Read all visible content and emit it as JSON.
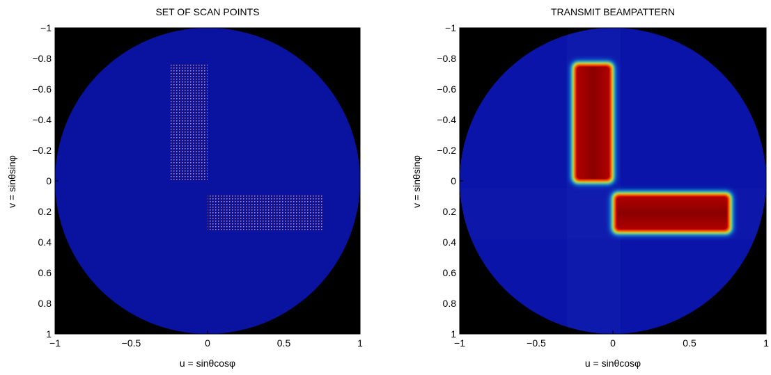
{
  "figure": {
    "left_title": "SET OF SCAN POINTS",
    "right_title": "TRANSMIT BEAMPATTERN"
  },
  "chart_data": [
    {
      "type": "heatmap",
      "title": "SET OF SCAN POINTS",
      "xlabel": "u = sinθcosφ",
      "ylabel": "v = sinθsinφ",
      "xlim": [
        -1,
        1
      ],
      "ylim": [
        -1,
        1
      ],
      "y_axis_reversed": true,
      "x_ticks": [
        "−1",
        "−0.5",
        "0",
        "0.5",
        "1"
      ],
      "x_tick_values": [
        -1,
        -0.5,
        0,
        0.5,
        1
      ],
      "y_ticks": [
        "−1",
        "−0.8",
        "−0.6",
        "−0.4",
        "−0.2",
        "0",
        "0.2",
        "0.4",
        "0.6",
        "0.8",
        "1"
      ],
      "y_tick_values": [
        -1,
        -0.8,
        -0.6,
        -0.4,
        -0.2,
        0,
        0.2,
        0.4,
        0.6,
        0.8,
        1
      ],
      "visible_region": "unit circle",
      "background_color": "#000000",
      "region_color": "#0a12a0",
      "point_color": "#ff8c1a",
      "scan_regions": [
        {
          "u_range": [
            -0.25,
            0.0
          ],
          "v_range": [
            -0.76,
            0.0
          ]
        },
        {
          "u_range": [
            0.0,
            0.76
          ],
          "v_range": [
            0.09,
            0.33
          ]
        }
      ]
    },
    {
      "type": "heatmap",
      "title": "TRANSMIT BEAMPATTERN",
      "xlabel": "u = sinθcosφ",
      "ylabel": "v = sinθsinφ",
      "xlim": [
        -1,
        1
      ],
      "ylim": [
        -1,
        1
      ],
      "y_axis_reversed": true,
      "x_ticks": [
        "−1",
        "−0.5",
        "0",
        "0.5",
        "1"
      ],
      "x_tick_values": [
        -1,
        -0.5,
        0,
        0.5,
        1
      ],
      "y_ticks": [
        "−1",
        "−0.8",
        "−0.6",
        "−0.4",
        "−0.2",
        "0",
        "0.2",
        "0.4",
        "0.6",
        "0.8",
        "1"
      ],
      "y_tick_values": [
        -1,
        -0.8,
        -0.6,
        -0.4,
        -0.2,
        0,
        0.2,
        0.4,
        0.6,
        0.8,
        1
      ],
      "visible_region": "unit circle",
      "background_color": "#000000",
      "colormap": "jet",
      "low_color": "#0a14a8",
      "high_color": "#a00000",
      "main_beams": [
        {
          "u_range": [
            -0.26,
            0.0
          ],
          "v_range": [
            -0.77,
            0.01
          ]
        },
        {
          "u_range": [
            0.0,
            0.77
          ],
          "v_range": [
            0.08,
            0.34
          ]
        }
      ]
    }
  ]
}
